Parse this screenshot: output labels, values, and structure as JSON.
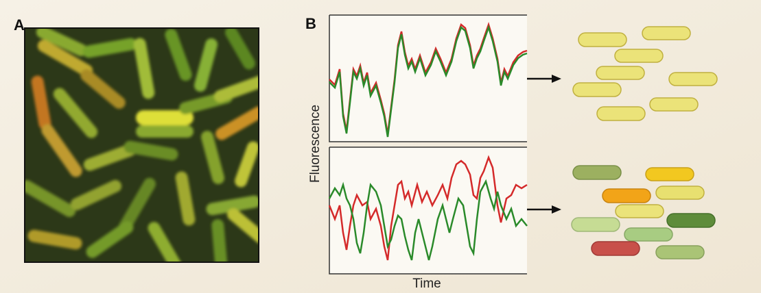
{
  "panels": [
    {
      "label": "A"
    },
    {
      "label": "B",
      "y_axis_label": "Fluorescence",
      "x_axis_label": "Time"
    }
  ]
}
